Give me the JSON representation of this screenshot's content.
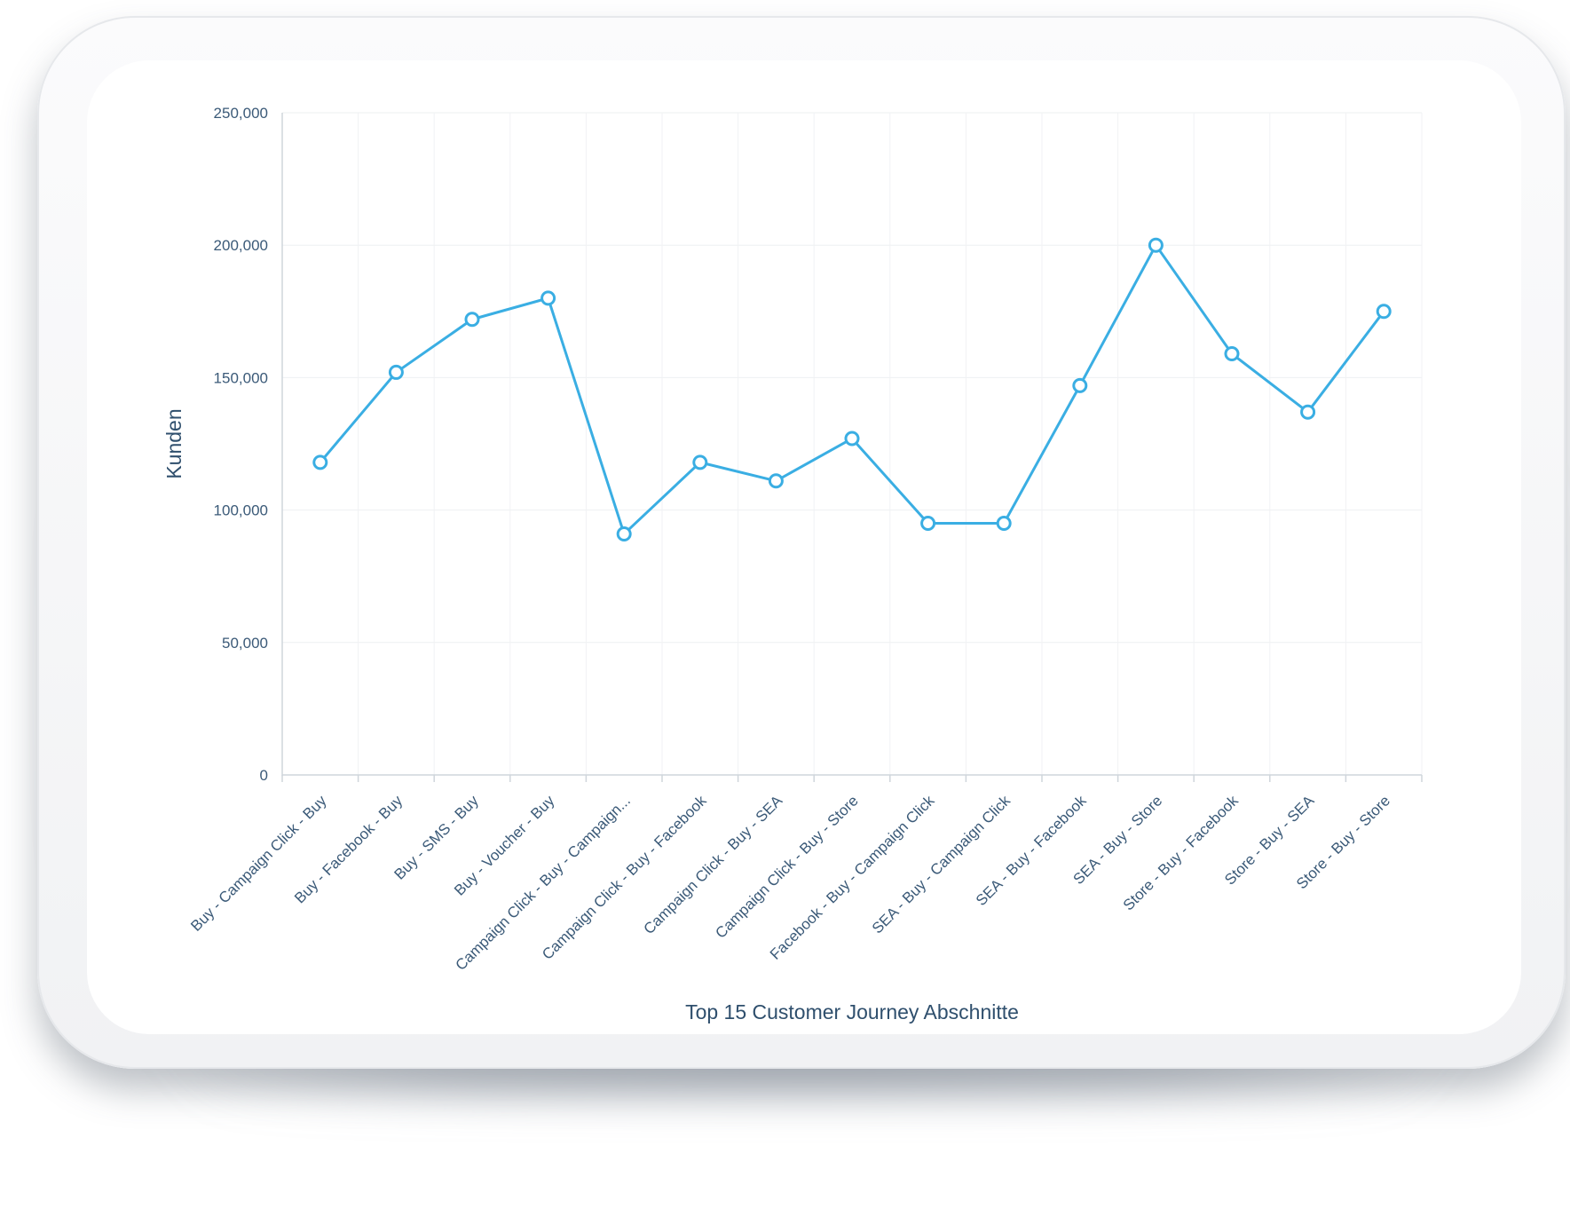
{
  "chart_data": {
    "type": "line",
    "title": "",
    "xlabel": "Top 15 Customer Journey Abschnitte",
    "ylabel": "Kunden",
    "ylim": [
      0,
      250000
    ],
    "yticks": [
      0,
      50000,
      100000,
      150000,
      200000,
      250000
    ],
    "ytick_labels": [
      "0",
      "50,000",
      "100,000",
      "150,000",
      "200,000",
      "250,000"
    ],
    "grid": true,
    "line_color": "#3aaee3",
    "categories": [
      "Buy - Campaign Click - Buy",
      "Buy - Facebook - Buy",
      "Buy - SMS - Buy",
      "Buy - Voucher - Buy",
      "Campaign Click - Buy - Campaign...",
      "Campaign Click - Buy - Facebook",
      "Campaign Click - Buy - SEA",
      "Campaign Click - Buy - Store",
      "Facebook - Buy - Campaign Click",
      "SEA - Buy - Campaign Click",
      "SEA - Buy - Facebook",
      "SEA - Buy - Store",
      "Store - Buy - Facebook",
      "Store - Buy - SEA",
      "Store - Buy - Store"
    ],
    "values": [
      118000,
      152000,
      172000,
      180000,
      91000,
      118000,
      111000,
      127000,
      95000,
      95000,
      147000,
      200000,
      159000,
      137000,
      175000
    ]
  }
}
